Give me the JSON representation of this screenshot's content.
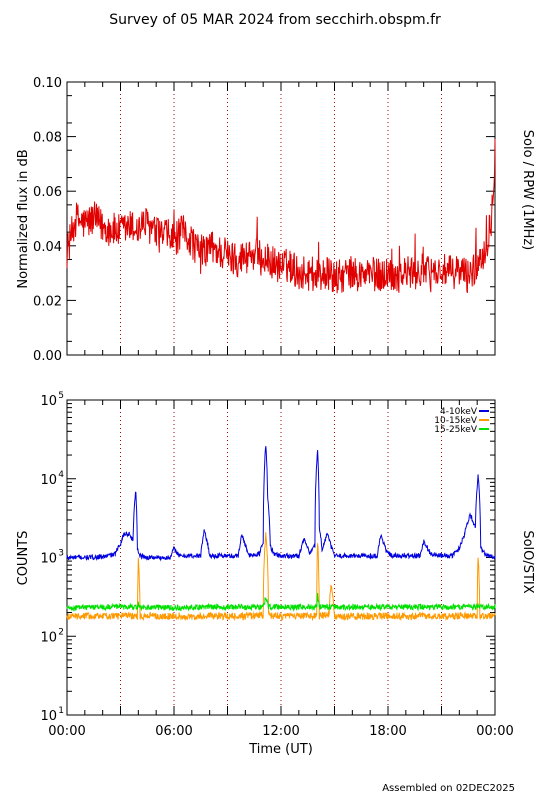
{
  "header": {
    "title": "Survey of 05 MAR 2024 from secchirh.obspm.fr"
  },
  "footer": {
    "credit": "Assembled on 02DEC2025"
  },
  "chart_data": [
    {
      "type": "line",
      "instrument_label": "Solo / RPW (1MHz)",
      "ylabel": "Normalized flux in dB",
      "xlabel": "",
      "xlim": [
        0,
        24
      ],
      "ylim": [
        0.0,
        0.1
      ],
      "yticks": [
        "0.00",
        "0.02",
        "0.04",
        "0.06",
        "0.08",
        "0.10"
      ],
      "grid": "vertical dotted lines every 3 h",
      "series": [
        {
          "color": "#e00000",
          "x": [
            0,
            0.5,
            1,
            1.5,
            2,
            2.5,
            3,
            3.5,
            4,
            4.5,
            5,
            5.5,
            6,
            6.5,
            7,
            7.5,
            8,
            8.5,
            9,
            9.5,
            10,
            10.5,
            11,
            11.5,
            12,
            12.5,
            13,
            13.5,
            14,
            14.5,
            15,
            15.5,
            16,
            16.5,
            17,
            17.5,
            18,
            18.5,
            19,
            19.5,
            20,
            20.5,
            21,
            21.5,
            22,
            22.5,
            23,
            23.5,
            23.8,
            24
          ],
          "y": [
            0.038,
            0.05,
            0.048,
            0.05,
            0.047,
            0.046,
            0.045,
            0.047,
            0.046,
            0.048,
            0.044,
            0.044,
            0.042,
            0.045,
            0.042,
            0.036,
            0.04,
            0.038,
            0.036,
            0.035,
            0.036,
            0.037,
            0.035,
            0.034,
            0.032,
            0.033,
            0.03,
            0.03,
            0.029,
            0.03,
            0.028,
            0.029,
            0.03,
            0.029,
            0.03,
            0.029,
            0.03,
            0.029,
            0.03,
            0.03,
            0.031,
            0.029,
            0.031,
            0.03,
            0.031,
            0.029,
            0.033,
            0.04,
            0.05,
            0.075
          ]
        }
      ]
    },
    {
      "type": "line",
      "instrument_label": "SolO/STIX",
      "ylabel": "COUNTS",
      "xlabel": "Time (UT)",
      "xlim": [
        0,
        24
      ],
      "ylim": [
        10,
        100000
      ],
      "yscale": "log",
      "yticks": [
        {
          "value": 10,
          "base": "10",
          "exp": "1"
        },
        {
          "value": 100,
          "base": "10",
          "exp": "2"
        },
        {
          "value": 1000,
          "base": "10",
          "exp": "3"
        },
        {
          "value": 10000,
          "base": "10",
          "exp": "4"
        },
        {
          "value": 100000,
          "base": "10",
          "exp": "5"
        }
      ],
      "xticks": [
        "00:00",
        "06:00",
        "12:00",
        "18:00",
        "00:00"
      ],
      "xtick_values": [
        0,
        6,
        12,
        18,
        24
      ],
      "grid": "vertical dotted lines every 3 h",
      "legend_position": "top-right",
      "series": [
        {
          "name": "4-10keV",
          "color": "#0000e0",
          "x": [
            0,
            1,
            2,
            2.7,
            3,
            3.2,
            3.5,
            3.7,
            3.85,
            3.95,
            4.1,
            4.5,
            5,
            5.8,
            6.0,
            6.3,
            7.0,
            7.5,
            7.7,
            8.0,
            9.0,
            9.6,
            9.8,
            10.2,
            10.8,
            11.0,
            11.15,
            11.25,
            11.4,
            11.6,
            12.0,
            13.0,
            13.3,
            13.6,
            13.9,
            14.05,
            14.15,
            14.3,
            14.6,
            14.8,
            15.0,
            15.3,
            16.0,
            17.0,
            17.4,
            17.6,
            17.9,
            18.2,
            19.0,
            19.8,
            20.0,
            20.4,
            21.0,
            21.6,
            22.0,
            22.3,
            22.6,
            22.9,
            23.05,
            23.2,
            23.5,
            24
          ],
          "y": [
            1000,
            1000,
            1020,
            1100,
            1500,
            2000,
            2000,
            1600,
            7000,
            1300,
            1050,
            1000,
            1000,
            1000,
            1300,
            1050,
            1050,
            1050,
            2200,
            1050,
            1050,
            1050,
            1900,
            1050,
            1100,
            1600,
            26000,
            6000,
            1400,
            1100,
            1050,
            1050,
            1700,
            1100,
            1400,
            22000,
            2500,
            1200,
            2000,
            1400,
            1050,
            1050,
            1050,
            1050,
            1050,
            1900,
            1200,
            1050,
            1050,
            1050,
            1600,
            1100,
            1050,
            1050,
            1300,
            2000,
            3500,
            2400,
            11000,
            1300,
            1050,
            1000
          ]
        },
        {
          "name": "10-15keV",
          "color": "#ff9900",
          "x": [
            0,
            2,
            3.95,
            4.0,
            4.1,
            6,
            8,
            10,
            11.0,
            11.15,
            11.3,
            12,
            13,
            14.0,
            14.05,
            14.15,
            14.7,
            14.8,
            15,
            17,
            19,
            21,
            23.0,
            23.05,
            23.15,
            24
          ],
          "y": [
            180,
            180,
            180,
            900,
            180,
            180,
            180,
            180,
            185,
            2000,
            185,
            180,
            180,
            180,
            1600,
            180,
            190,
            450,
            180,
            180,
            180,
            180,
            185,
            1000,
            180,
            180
          ]
        },
        {
          "name": "15-25keV",
          "color": "#00e000",
          "x": [
            0,
            2,
            3.95,
            4.0,
            4.1,
            6,
            8,
            10,
            11.0,
            11.15,
            11.3,
            12,
            13,
            14.0,
            14.05,
            14.15,
            15,
            17,
            19,
            21,
            23.0,
            23.05,
            23.15,
            24
          ],
          "y": [
            230,
            235,
            235,
            260,
            235,
            230,
            235,
            235,
            235,
            300,
            235,
            235,
            235,
            235,
            330,
            235,
            235,
            235,
            235,
            235,
            235,
            260,
            235,
            235
          ]
        }
      ]
    }
  ]
}
